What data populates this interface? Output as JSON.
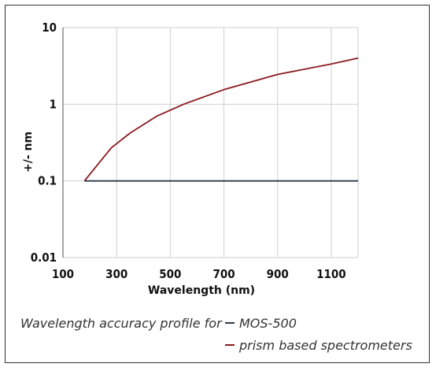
{
  "chart_data": {
    "type": "line",
    "ylabel": "+/- nm",
    "xlabel": "Wavelength (nm)",
    "xlim": [
      100,
      1200
    ],
    "ylim": [
      0.01,
      10
    ],
    "y_scale": "log",
    "grid": true,
    "x_ticks": [
      100,
      300,
      500,
      700,
      900,
      1100
    ],
    "x_tick_labels": [
      "100",
      "300",
      "500",
      "700",
      "900",
      "1100"
    ],
    "y_ticks": [
      0.01,
      0.1,
      1,
      10
    ],
    "y_tick_labels": [
      "0.01",
      "0.1",
      "1",
      "10"
    ],
    "series": [
      {
        "name": "MOS-500",
        "color": "#2b3a4a",
        "x": [
          180,
          1200
        ],
        "y": [
          0.1,
          0.1
        ]
      },
      {
        "name": "prism based spectrometers",
        "color": "#8b1a1f",
        "x": [
          180,
          280,
          350,
          450,
          550,
          700,
          900,
          1100,
          1200
        ],
        "y": [
          0.1,
          0.27,
          0.42,
          0.7,
          1.0,
          1.55,
          2.45,
          3.35,
          4.0
        ]
      }
    ]
  },
  "caption": {
    "prefix": "Wavelength accuracy profile for",
    "legend_items": [
      {
        "label": "MOS-500",
        "color": "#2b3a4a"
      },
      {
        "label": "prism based spectrometers",
        "color": "#8b1a1f"
      }
    ]
  },
  "colors": {
    "grid": "#cfcfcf",
    "axis": "#555555"
  }
}
